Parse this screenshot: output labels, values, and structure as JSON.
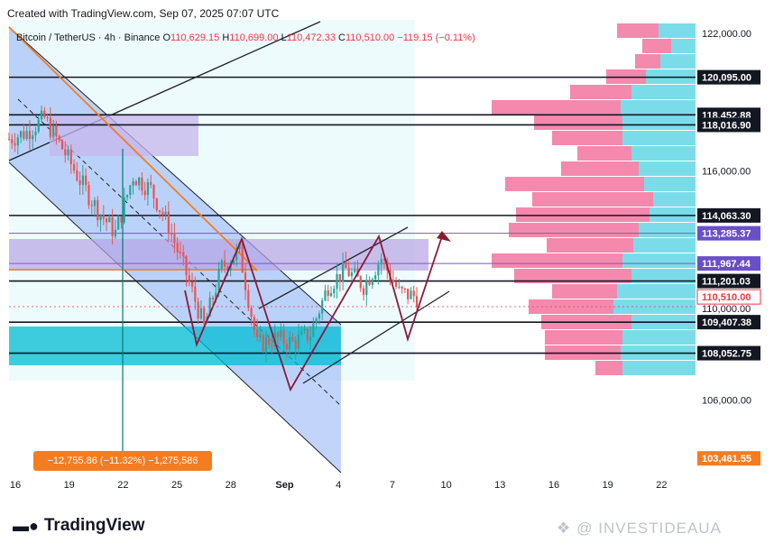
{
  "header": {
    "created_text": "Created with TradingView.com, Sep 07, 2025 07:07 UTC"
  },
  "symbol_line": {
    "symbol": "Bitcoin / TetherUS · 4h · Binance",
    "open_label": "O",
    "open": "110,629.15",
    "high_label": "H",
    "high": "110,699.00",
    "low_label": "L",
    "low": "110,472.33",
    "close_label": "C",
    "close": "110,510.00",
    "change": "−119.15 (−0.11%)"
  },
  "measure_label": "−12,755.86 (−11.32%) −1,275,586",
  "brand": {
    "text": "TradingView",
    "logo_icon": "tradingview-logo-icon"
  },
  "watermark": {
    "text": "@ INVESTIDEAUA",
    "icon": "watermark-logo-icon"
  },
  "colors": {
    "up_candle": "#26a69a",
    "down_candle": "#ef5350",
    "channel_fill": "#b3c7f7",
    "zone_purple": "#b39ddb",
    "zone_cyan": "#00bcd4",
    "vp_pink": "#f06292",
    "vp_cyan": "#4dd0e1",
    "orange_line": "#f57c20",
    "maroon_path": "#8b1a3a"
  },
  "chart_data": {
    "type": "candlestick",
    "x_tick_labels": [
      "16",
      "19",
      "22",
      "25",
      "28",
      "Sep",
      "4",
      "7",
      "10",
      "13",
      "16",
      "19",
      "22"
    ],
    "y_axis": {
      "ylim": [
        102800,
        122600
      ],
      "ticks": [
        {
          "value": 122000,
          "label": "122,000.00"
        },
        {
          "value": 116000,
          "label": "116,000.00"
        },
        {
          "value": 110000,
          "label": "110,000.00"
        },
        {
          "value": 106000,
          "label": "106,000.00"
        }
      ]
    },
    "price_labels": [
      {
        "value": 120095.0,
        "label": "120,095.00",
        "style": "black"
      },
      {
        "value": 118452.88,
        "label": "118,452.88",
        "style": "black"
      },
      {
        "value": 118016.9,
        "label": "118,016.90",
        "style": "black"
      },
      {
        "value": 114063.3,
        "label": "114,063.30",
        "style": "black"
      },
      {
        "value": 113285.37,
        "label": "113,285.37",
        "style": "purple"
      },
      {
        "value": 111967.44,
        "label": "111,967.44",
        "style": "purple"
      },
      {
        "value": 111201.03,
        "label": "111,201.03",
        "style": "black"
      },
      {
        "value": 110510.0,
        "label": "110,510.00",
        "style": "red"
      },
      {
        "value": 109407.38,
        "label": "109,407.38",
        "style": "black"
      },
      {
        "value": 108052.75,
        "label": "108,052.75",
        "style": "black"
      },
      {
        "value": 103461.55,
        "label": "103,461.55",
        "style": "orange"
      }
    ],
    "price_series_approx": [
      {
        "x": "15",
        "y": 117400
      },
      {
        "x": "16",
        "y": 117700
      },
      {
        "x": "17",
        "y": 118300
      },
      {
        "x": "18",
        "y": 117000
      },
      {
        "x": "19",
        "y": 115600
      },
      {
        "x": "20",
        "y": 114300
      },
      {
        "x": "21",
        "y": 113300
      },
      {
        "x": "22",
        "y": 115800
      },
      {
        "x": "23",
        "y": 115200
      },
      {
        "x": "24",
        "y": 113600
      },
      {
        "x": "25",
        "y": 111500
      },
      {
        "x": "26",
        "y": 109200
      },
      {
        "x": "27",
        "y": 111800
      },
      {
        "x": "28",
        "y": 112500
      },
      {
        "x": "29",
        "y": 108400
      },
      {
        "x": "30",
        "y": 108700
      },
      {
        "x": "31",
        "y": 108500
      },
      {
        "x": "Sep 1",
        "y": 108900
      },
      {
        "x": "Sep 2",
        "y": 111000
      },
      {
        "x": "Sep 3",
        "y": 111700
      },
      {
        "x": "Sep 4",
        "y": 111000
      },
      {
        "x": "Sep 5",
        "y": 112200
      },
      {
        "x": "Sep 6",
        "y": 110700
      },
      {
        "x": "Sep 7",
        "y": 110510
      }
    ]
  }
}
